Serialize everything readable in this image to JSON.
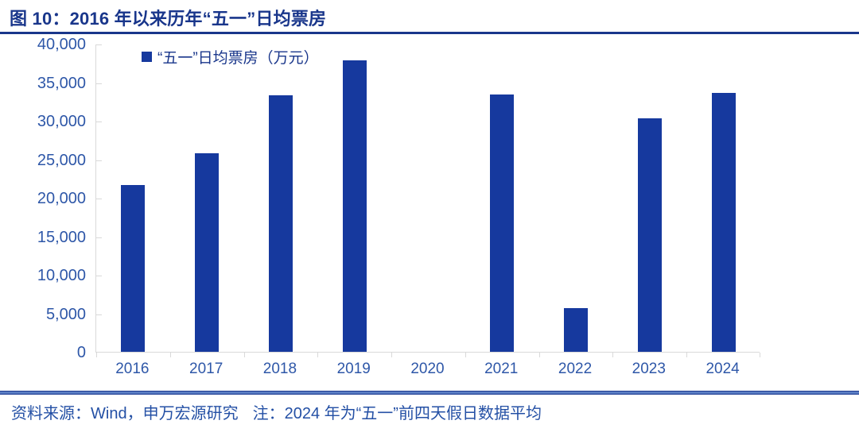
{
  "header": {
    "title": "图 10：2016 年以来历年“五一”日均票房"
  },
  "footer": {
    "source": "资料来源：Wind，申万宏源研究",
    "note": "注：2024 年为“五一”前四天假日数据平均"
  },
  "colors": {
    "bar": "#16399E",
    "title": "#19368B",
    "axis_line": "#D9D9D9",
    "tick_label": "#2E57A8",
    "footer_text": "#2450A5"
  },
  "chart_data": {
    "type": "bar",
    "title": "2016 年以来历年“五一”日均票房",
    "legend": "“五一”日均票房（万元）",
    "legend_position": "top-left-inside",
    "categories": [
      "2016",
      "2017",
      "2018",
      "2019",
      "2020",
      "2021",
      "2022",
      "2023",
      "2024"
    ],
    "values": [
      21700,
      25800,
      33300,
      37800,
      0,
      33400,
      5700,
      30300,
      33600
    ],
    "xlabel": "",
    "ylabel": "万元",
    "ylim": [
      0,
      40000
    ],
    "ytick_step": 5000,
    "grid": false
  }
}
